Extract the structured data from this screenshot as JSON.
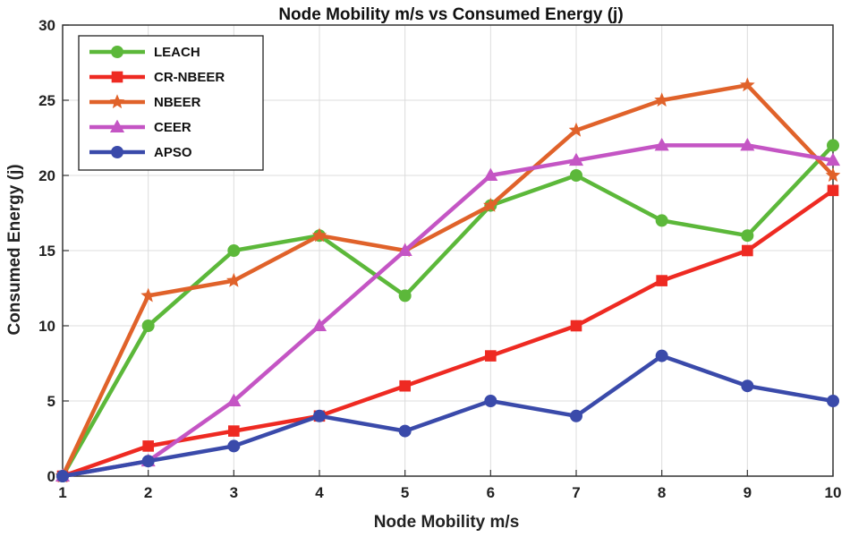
{
  "chart_data": {
    "type": "line",
    "title": "Node Mobility m/s vs Consumed Energy (j)",
    "xlabel": "Node Mobility m/s",
    "ylabel": "Consumed Energy (j)",
    "x": [
      1,
      2,
      3,
      4,
      5,
      6,
      7,
      8,
      9,
      10
    ],
    "xlim": [
      1,
      10
    ],
    "ylim": [
      0,
      30
    ],
    "xticks": [
      "1",
      "2",
      "3",
      "4",
      "5",
      "6",
      "7",
      "8",
      "9",
      "10"
    ],
    "yticks": [
      "0",
      "5",
      "10",
      "15",
      "20",
      "25",
      "30"
    ],
    "grid": true,
    "legend_position": "top-left",
    "series": [
      {
        "name": "LEACH",
        "color": "#5cb83a",
        "marker": "circle",
        "values": [
          0,
          10,
          15,
          16,
          12,
          18,
          20,
          17,
          16,
          22
        ]
      },
      {
        "name": "CR-NBEER",
        "color": "#ee2a22",
        "marker": "square",
        "values": [
          0,
          2,
          3,
          4,
          6,
          8,
          10,
          13,
          15,
          19
        ]
      },
      {
        "name": "NBEER",
        "color": "#e0622a",
        "marker": "star",
        "values": [
          0,
          12,
          13,
          16,
          15,
          18,
          23,
          25,
          26,
          20
        ]
      },
      {
        "name": "CEER",
        "color": "#c455c4",
        "marker": "triangle",
        "values": [
          0,
          1,
          5,
          10,
          15,
          20,
          21,
          22,
          22,
          21
        ]
      },
      {
        "name": "APSO",
        "color": "#3a4aaa",
        "marker": "circle",
        "values": [
          0,
          1,
          2,
          4,
          3,
          5,
          4,
          8,
          6,
          5
        ]
      }
    ]
  }
}
